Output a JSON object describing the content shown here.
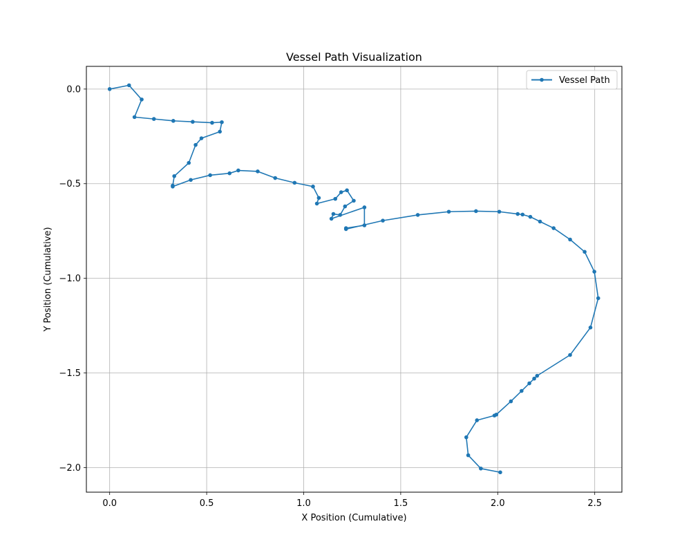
{
  "chart_data": {
    "type": "line",
    "title": "Vessel Path Visualization",
    "xlabel": "X Position (Cumulative)",
    "ylabel": "Y Position (Cumulative)",
    "xlim": [
      -0.12,
      2.64
    ],
    "ylim": [
      -2.13,
      0.12
    ],
    "xticks": [
      0.0,
      0.5,
      1.0,
      1.5,
      2.0,
      2.5
    ],
    "xtick_labels": [
      "0.0",
      "0.5",
      "1.0",
      "1.5",
      "2.0",
      "2.5"
    ],
    "yticks": [
      0.0,
      -0.5,
      -1.0,
      -1.5,
      -2.0
    ],
    "ytick_labels": [
      "0.0",
      "−0.5",
      "−1.0",
      "−1.5",
      "−2.0"
    ],
    "grid": true,
    "legend_position": "top-right",
    "series": [
      {
        "name": "Vessel Path",
        "color": "#1f77b4",
        "marker": "circle",
        "x": [
          0.0,
          0.1,
          0.165,
          0.128,
          0.228,
          0.328,
          0.428,
          0.528,
          0.578,
          0.568,
          0.473,
          0.443,
          0.408,
          0.333,
          0.325,
          0.325,
          0.418,
          0.518,
          0.618,
          0.663,
          0.763,
          0.853,
          0.953,
          1.048,
          1.078,
          1.068,
          1.163,
          1.193,
          1.223,
          1.258,
          1.213,
          1.188,
          1.153,
          1.143,
          1.313,
          1.313,
          1.218,
          1.218,
          1.408,
          1.588,
          1.748,
          1.888,
          2.008,
          2.103,
          2.128,
          2.168,
          2.218,
          2.288,
          2.373,
          2.448,
          2.498,
          2.518,
          2.478,
          2.373,
          2.203,
          2.188,
          2.163,
          2.123,
          2.068,
          1.993,
          1.983,
          1.893,
          1.838,
          1.848,
          1.913,
          2.013
        ],
        "y": [
          0.0,
          0.02,
          -0.055,
          -0.148,
          -0.158,
          -0.168,
          -0.173,
          -0.178,
          -0.175,
          -0.225,
          -0.26,
          -0.295,
          -0.39,
          -0.46,
          -0.51,
          -0.515,
          -0.48,
          -0.455,
          -0.445,
          -0.43,
          -0.435,
          -0.47,
          -0.495,
          -0.515,
          -0.575,
          -0.605,
          -0.58,
          -0.545,
          -0.535,
          -0.59,
          -0.62,
          -0.665,
          -0.66,
          -0.685,
          -0.625,
          -0.72,
          -0.735,
          -0.74,
          -0.695,
          -0.665,
          -0.648,
          -0.645,
          -0.648,
          -0.66,
          -0.663,
          -0.675,
          -0.7,
          -0.735,
          -0.795,
          -0.86,
          -0.965,
          -1.105,
          -1.26,
          -1.405,
          -1.515,
          -1.53,
          -1.555,
          -1.595,
          -1.65,
          -1.72,
          -1.725,
          -1.75,
          -1.84,
          -1.935,
          -2.005,
          -2.025
        ]
      }
    ]
  }
}
